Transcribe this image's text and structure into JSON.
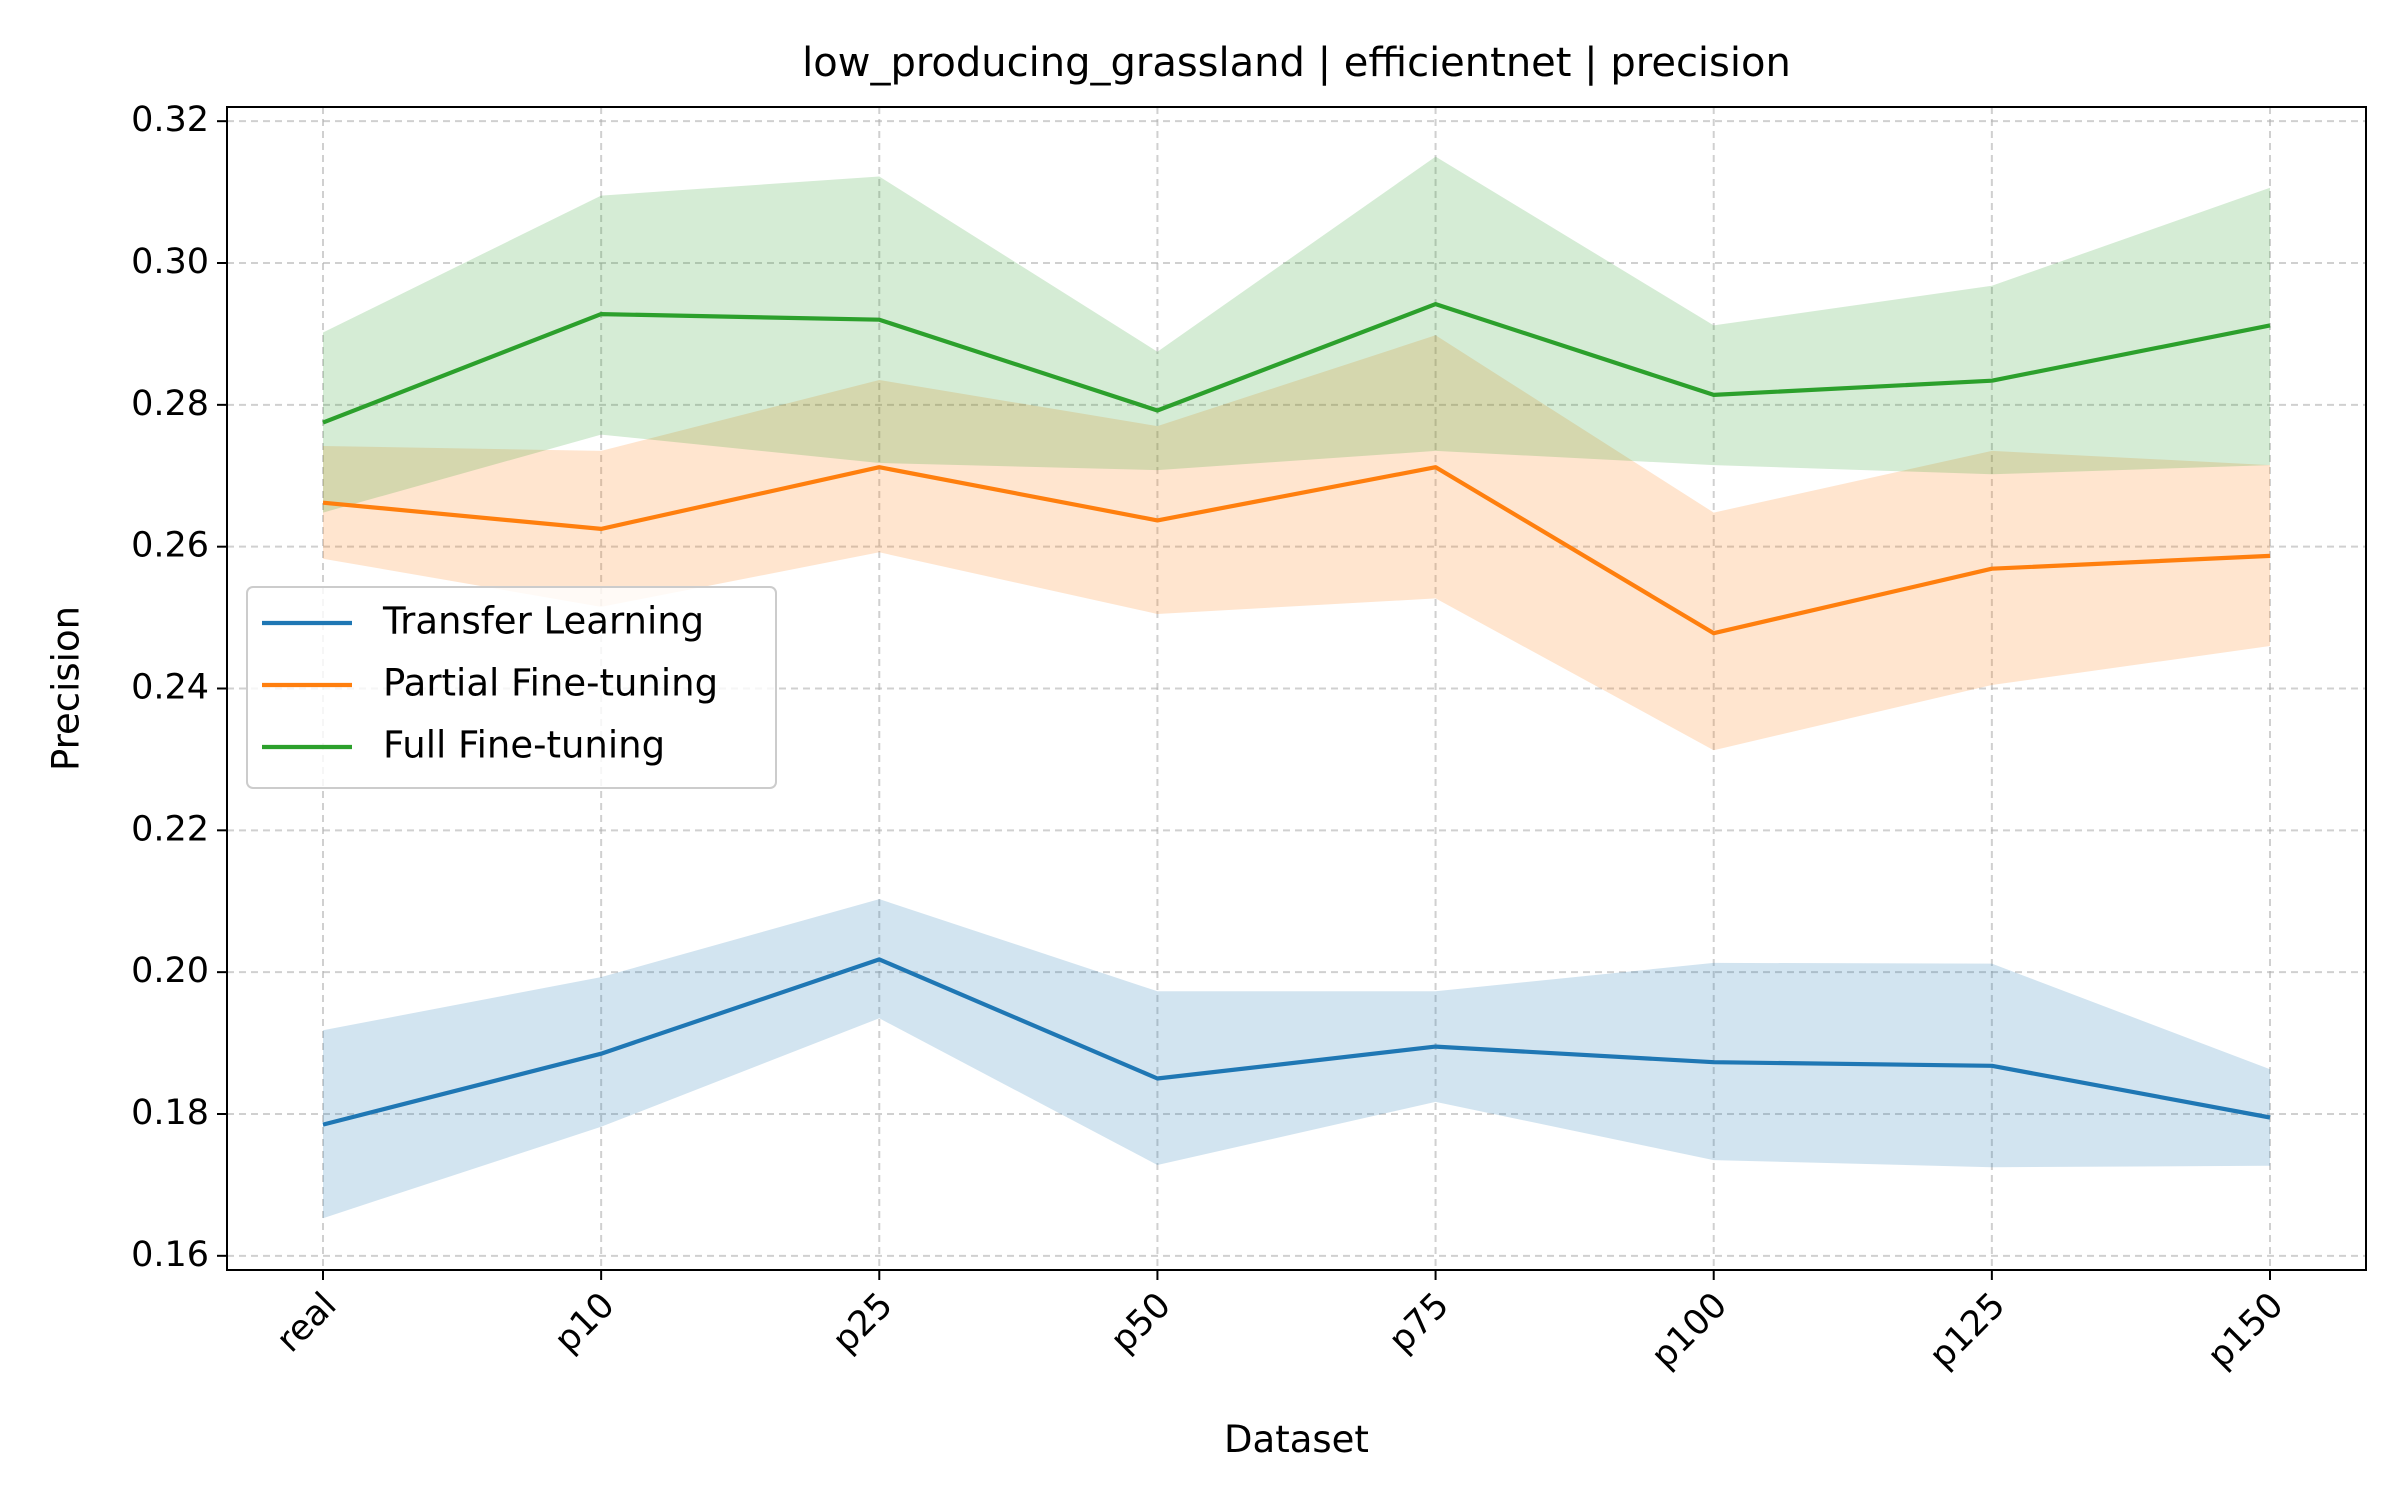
{
  "chart_data": {
    "type": "line",
    "title": "low_producing_grassland | efficientnet | precision",
    "xlabel": "Dataset",
    "ylabel": "Precision",
    "categories": [
      "real",
      "p10",
      "p25",
      "p50",
      "p75",
      "p100",
      "p125",
      "p150"
    ],
    "ylim": [
      0.158,
      0.322
    ],
    "yticks": [
      0.16,
      0.18,
      0.2,
      0.22,
      0.24,
      0.26,
      0.28,
      0.3,
      0.32
    ],
    "ytick_labels": [
      "0.16",
      "0.18",
      "0.20",
      "0.22",
      "0.24",
      "0.26",
      "0.28",
      "0.30",
      "0.32"
    ],
    "grid": true,
    "legend_position": "center-left",
    "series": [
      {
        "name": "Transfer Learning",
        "color": "#1f77b4",
        "values": [
          0.1785,
          0.1885,
          0.2018,
          0.185,
          0.1895,
          0.1873,
          0.1868,
          0.1795
        ],
        "lower": [
          0.1653,
          0.1782,
          0.1935,
          0.1728,
          0.1817,
          0.1735,
          0.1725,
          0.1727
        ],
        "upper": [
          0.1918,
          0.1993,
          0.2103,
          0.1973,
          0.1973,
          0.2013,
          0.2012,
          0.1863
        ]
      },
      {
        "name": "Partial Fine-tuning",
        "color": "#ff7f0e",
        "values": [
          0.2662,
          0.2625,
          0.2712,
          0.2637,
          0.2712,
          0.2478,
          0.2569,
          0.2587
        ],
        "lower": [
          0.2583,
          0.2515,
          0.2592,
          0.2505,
          0.2527,
          0.2313,
          0.2405,
          0.246
        ],
        "upper": [
          0.2742,
          0.2735,
          0.2835,
          0.277,
          0.2898,
          0.2648,
          0.2735,
          0.2715
        ]
      },
      {
        "name": "Full Fine-tuning",
        "color": "#2ca02c",
        "values": [
          0.2775,
          0.2928,
          0.292,
          0.2792,
          0.2942,
          0.2814,
          0.2834,
          0.2912
        ],
        "lower": [
          0.2648,
          0.2758,
          0.2718,
          0.2708,
          0.2735,
          0.2715,
          0.2702,
          0.2715
        ],
        "upper": [
          0.2902,
          0.3095,
          0.3122,
          0.2875,
          0.315,
          0.2912,
          0.2968,
          0.3106
        ]
      }
    ]
  }
}
